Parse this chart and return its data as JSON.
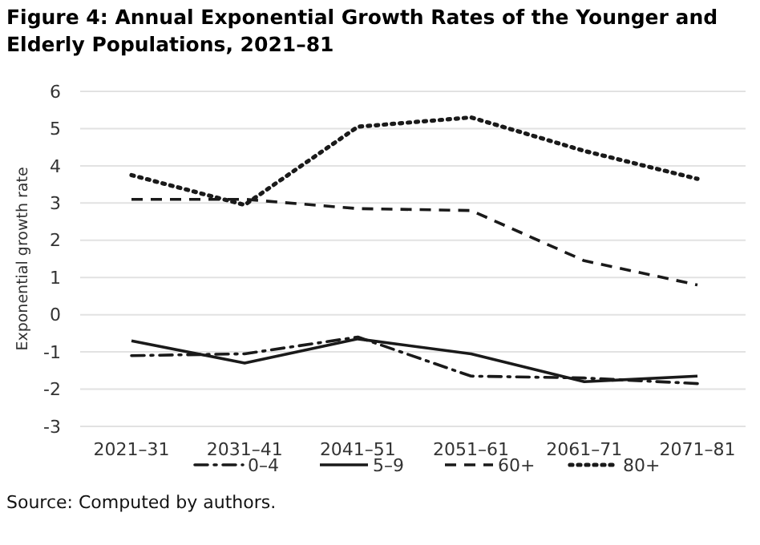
{
  "chart_data": {
    "type": "line",
    "title": "Figure 4: Annual Exponential Growth Rates of the Younger and Elderly Populations, 2021–81",
    "ylabel": "Exponential growth rate",
    "categories": [
      "2021–31",
      "2031–41",
      "2041–51",
      "2051–61",
      "2061–71",
      "2071–81"
    ],
    "series": [
      {
        "name": "0–4",
        "color": "#1a1a1a",
        "line_style": "dashdot",
        "values": [
          -1.1,
          -1.05,
          -0.6,
          -1.65,
          -1.7,
          -1.85
        ]
      },
      {
        "name": "5–9",
        "color": "#1a1a1a",
        "line_style": "solid",
        "values": [
          -0.7,
          -1.3,
          -0.65,
          -1.05,
          -1.8,
          -1.65
        ]
      },
      {
        "name": "60+",
        "color": "#1a1a1a",
        "line_style": "dashed",
        "values": [
          3.1,
          3.1,
          2.85,
          2.8,
          1.45,
          0.8
        ]
      },
      {
        "name": "80+",
        "color": "#1a1a1a",
        "line_style": "dotted",
        "values": [
          3.75,
          2.95,
          5.05,
          5.3,
          4.4,
          3.65
        ]
      }
    ],
    "ylim": [
      -3,
      6
    ],
    "yticks": [
      -3,
      -2,
      -1,
      0,
      1,
      2,
      3,
      4,
      5,
      6
    ],
    "grid": "y",
    "legend": "bottom",
    "marker": "none",
    "annotations": [
      "Source: Computed by authors."
    ]
  }
}
